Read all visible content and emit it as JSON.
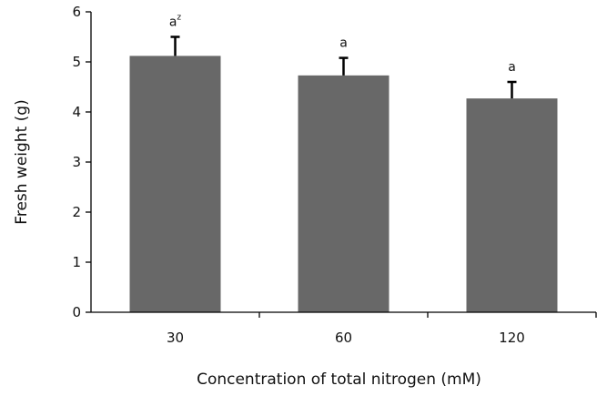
{
  "chart_data": {
    "type": "bar",
    "title": "",
    "xlabel": "Concentration of total nitrogen (mM)",
    "ylabel": "Fresh weight (g)",
    "categories": [
      "30",
      "60",
      "120"
    ],
    "values": [
      5.12,
      4.73,
      4.27
    ],
    "error": [
      0.38,
      0.35,
      0.33
    ],
    "significance": [
      {
        "letter": "a",
        "superscript": "z"
      },
      {
        "letter": "a",
        "superscript": ""
      },
      {
        "letter": "a",
        "superscript": ""
      }
    ],
    "ylim": [
      0,
      6
    ],
    "yticks": [
      "0",
      "1",
      "2",
      "3",
      "4",
      "5",
      "6"
    ],
    "grid": false,
    "bar_color": "#686868",
    "axis_color": "#000000"
  }
}
